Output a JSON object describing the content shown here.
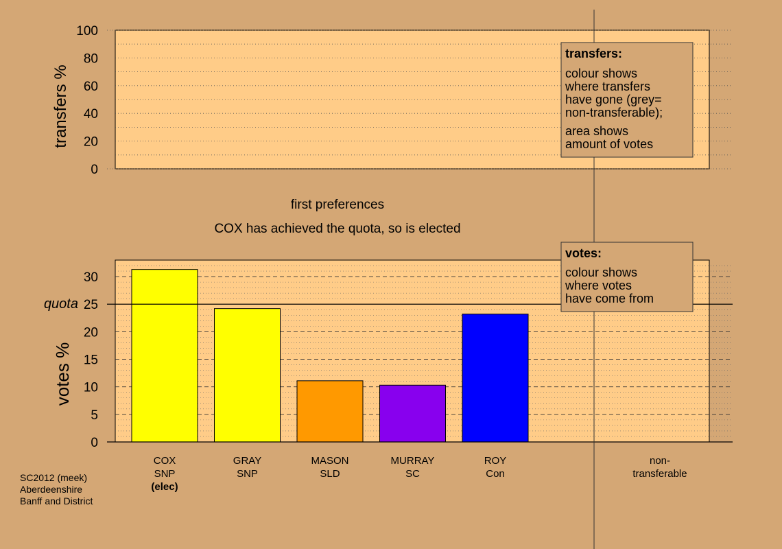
{
  "footer": {
    "lines": [
      "SC2012 (meek)",
      "Aberdeenshire",
      "Banff and District"
    ]
  },
  "stage": {
    "title": "first preferences",
    "message": "COX has achieved the quota, so is elected"
  },
  "legends": {
    "transfers": {
      "heading": "transfers:",
      "lines": [
        "colour shows",
        "where transfers",
        "have gone (grey=",
        "non-transferable);"
      ],
      "lines2": [
        "area shows",
        "amount of votes"
      ]
    },
    "votes": {
      "heading": "votes:",
      "lines": [
        "colour shows",
        "where votes",
        "have come from"
      ]
    }
  },
  "colors": {
    "background": "#d4a775",
    "plot": "#ffcc88",
    "SNP": "#ffff00",
    "SLD": "#ff9900",
    "SC": "#8800ee",
    "Con": "#0000ff"
  },
  "chart_data": [
    {
      "type": "bar",
      "ylabel": "transfers %",
      "ylim": [
        0,
        100
      ],
      "yticks": [
        0,
        20,
        40,
        60,
        80,
        100
      ],
      "grid": true,
      "series": []
    },
    {
      "type": "bar",
      "ylabel": "votes %",
      "ylim": [
        0,
        33
      ],
      "yticks": [
        0,
        5,
        10,
        15,
        20,
        25,
        30
      ],
      "grid": true,
      "quota": {
        "label": "quota",
        "value": 25
      },
      "categories": [
        {
          "name": "COX",
          "party": "SNP",
          "status": "(elec)"
        },
        {
          "name": "GRAY",
          "party": "SNP",
          "status": ""
        },
        {
          "name": "MASON",
          "party": "SLD",
          "status": ""
        },
        {
          "name": "MURRAY",
          "party": "SC",
          "status": ""
        },
        {
          "name": "ROY",
          "party": "Con",
          "status": ""
        }
      ],
      "values": [
        31.3,
        24.2,
        11.1,
        10.3,
        23.2
      ],
      "nontransferable": {
        "line1": "non-",
        "line2": "transferable",
        "value": 0
      }
    }
  ]
}
